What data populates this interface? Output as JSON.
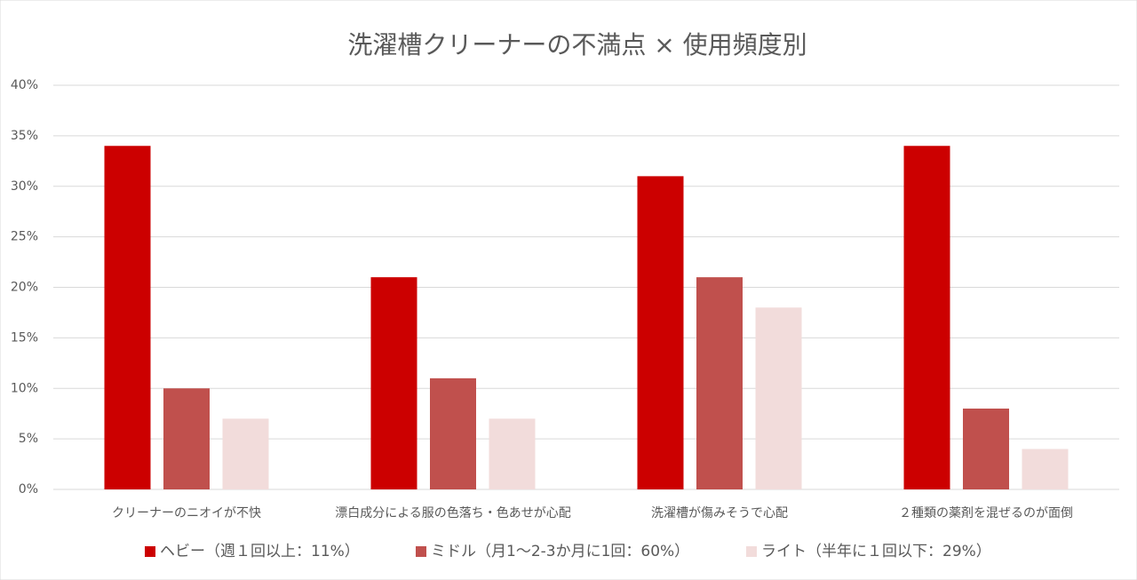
{
  "chart_data": {
    "type": "bar",
    "title": "洗濯槽クリーナーの不満点 × 使用頻度別",
    "categories": [
      "クリーナーのニオイが不快",
      "漂白成分による服の色落ち・色あせが心配",
      "洗濯槽が傷みそうで心配",
      "２種類の薬剤を混ぜるのが面倒"
    ],
    "series": [
      {
        "name": "ヘビー（週１回以上：11%）",
        "color": "#cc0000",
        "values": [
          34,
          21,
          31,
          34
        ]
      },
      {
        "name": "ミドル（月1～2-3か月に1回：60%）",
        "color": "#c0504d",
        "values": [
          10,
          11,
          21,
          8
        ]
      },
      {
        "name": "ライト（半年に１回以下：29%）",
        "color": "#f2dcdb",
        "values": [
          7,
          7,
          18,
          4
        ]
      }
    ],
    "ylim": [
      0,
      40
    ],
    "yticks": [
      {
        "value": 0,
        "label": "0%"
      },
      {
        "value": 5,
        "label": "5%"
      },
      {
        "value": 10,
        "label": "10%"
      },
      {
        "value": 15,
        "label": "15%"
      },
      {
        "value": 20,
        "label": "20%"
      },
      {
        "value": 25,
        "label": "25%"
      },
      {
        "value": 30,
        "label": "30%"
      },
      {
        "value": 35,
        "label": "35%"
      },
      {
        "value": 40,
        "label": "40%"
      }
    ],
    "grid": true,
    "legend": "bottom"
  }
}
